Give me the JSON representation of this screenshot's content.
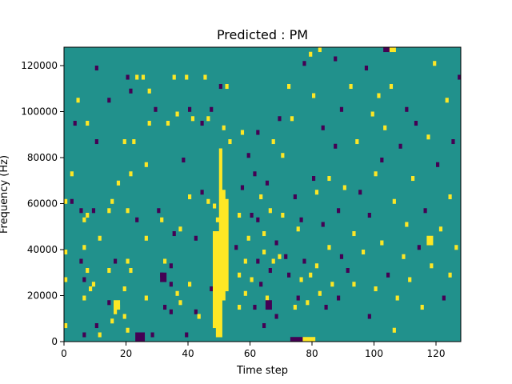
{
  "chart_data": {
    "type": "heatmap",
    "title": "Predicted : PM",
    "xlabel": "Time step",
    "ylabel": "Frequency (Hz)",
    "xlim": [
      0,
      128
    ],
    "ylim": [
      0,
      128000
    ],
    "xticks": [
      0,
      20,
      40,
      60,
      80,
      100,
      120
    ],
    "yticks": [
      0,
      20000,
      40000,
      60000,
      80000,
      100000,
      120000
    ],
    "ytick_labels": [
      "0",
      "20000",
      "40000",
      "60000",
      "80000",
      "100000",
      "120000"
    ],
    "n_time_steps": 128,
    "n_freq_bins": 64,
    "colormap": "viridis",
    "levels": [
      -1,
      0,
      1
    ],
    "colors": {
      "low": "#440154",
      "mid": "#21918c",
      "high": "#fde725"
    },
    "grid": false,
    "legend": "none",
    "cells": [
      {
        "t": 0,
        "f": 60000,
        "v": 1
      },
      {
        "t": 0,
        "f": 38000,
        "v": 1
      },
      {
        "t": 0,
        "f": 6000,
        "v": 1
      },
      {
        "t": 2,
        "f": 72000,
        "v": 1
      },
      {
        "t": 2,
        "f": 60000,
        "v": -1
      },
      {
        "t": 3,
        "f": 94000,
        "v": -1
      },
      {
        "t": 4,
        "f": 104000,
        "v": 1
      },
      {
        "t": 5,
        "f": 34000,
        "v": -1
      },
      {
        "t": 5,
        "f": 56000,
        "v": -1
      },
      {
        "t": 6,
        "f": 52000,
        "v": 1
      },
      {
        "t": 6,
        "f": 40000,
        "v": 1
      },
      {
        "t": 6,
        "f": 18000,
        "v": 1
      },
      {
        "t": 6,
        "f": 26000,
        "v": -1
      },
      {
        "t": 6,
        "f": 2000,
        "v": -1
      },
      {
        "t": 7,
        "f": 54000,
        "v": 1
      },
      {
        "t": 7,
        "f": 94000,
        "v": 1
      },
      {
        "t": 7,
        "f": 30000,
        "v": 1
      },
      {
        "t": 8,
        "f": 22000,
        "v": 1
      },
      {
        "t": 9,
        "f": 24000,
        "v": 1
      },
      {
        "t": 9,
        "f": 56000,
        "v": -1
      },
      {
        "t": 10,
        "f": 118000,
        "v": -1
      },
      {
        "t": 10,
        "f": 86000,
        "v": -1
      },
      {
        "t": 10,
        "f": 6000,
        "v": -1
      },
      {
        "t": 11,
        "f": 44000,
        "v": 1
      },
      {
        "t": 11,
        "f": 2000,
        "v": 1
      },
      {
        "t": 14,
        "f": 104000,
        "v": -1
      },
      {
        "t": 14,
        "f": 56000,
        "v": 1
      },
      {
        "t": 14,
        "f": 30000,
        "v": 1
      },
      {
        "t": 14,
        "f": 16000,
        "v": -1
      },
      {
        "t": 15,
        "f": 60000,
        "v": 1
      },
      {
        "t": 15,
        "f": 8000,
        "v": 1
      },
      {
        "t": 16,
        "f": 34000,
        "v": -1
      },
      {
        "t": 16,
        "f": 12000,
        "v": 1
      },
      {
        "t": 17,
        "f": 68000,
        "v": 1
      },
      {
        "t": 17,
        "f": 14000,
        "v": 1
      },
      {
        "t": 19,
        "f": 22000,
        "v": 1
      },
      {
        "t": 19,
        "f": 10000,
        "v": 1
      },
      {
        "t": 19,
        "f": 86000,
        "v": 1
      },
      {
        "t": 20,
        "f": 114000,
        "v": -1
      },
      {
        "t": 20,
        "f": 56000,
        "v": 1
      },
      {
        "t": 20,
        "f": 34000,
        "v": 1
      },
      {
        "t": 20,
        "f": 4000,
        "v": 1
      },
      {
        "t": 21,
        "f": 108000,
        "v": -1
      },
      {
        "t": 21,
        "f": 72000,
        "v": 1
      },
      {
        "t": 21,
        "f": 30000,
        "v": 1
      },
      {
        "t": 22,
        "f": 86000,
        "v": 1
      },
      {
        "t": 23,
        "f": 114000,
        "v": 1
      },
      {
        "t": 23,
        "f": 52000,
        "v": -1
      },
      {
        "t": 24,
        "f": 2000,
        "v": -1
      },
      {
        "t": 25,
        "f": 114000,
        "v": 1
      },
      {
        "t": 26,
        "f": 76000,
        "v": 1
      },
      {
        "t": 26,
        "f": 44000,
        "v": 1
      },
      {
        "t": 26,
        "f": 18000,
        "v": 1
      },
      {
        "t": 27,
        "f": 108000,
        "v": 1
      },
      {
        "t": 27,
        "f": 94000,
        "v": 1
      },
      {
        "t": 28,
        "f": 2000,
        "v": -1
      },
      {
        "t": 29,
        "f": 100000,
        "v": -1
      },
      {
        "t": 30,
        "f": 56000,
        "v": -1
      },
      {
        "t": 31,
        "f": 28000,
        "v": -1
      },
      {
        "t": 31,
        "f": 52000,
        "v": 1
      },
      {
        "t": 32,
        "f": 34000,
        "v": 1
      },
      {
        "t": 32,
        "f": 14000,
        "v": -1
      },
      {
        "t": 33,
        "f": 94000,
        "v": 1
      },
      {
        "t": 34,
        "f": 32000,
        "v": -1
      },
      {
        "t": 34,
        "f": 24000,
        "v": -1
      },
      {
        "t": 34,
        "f": 12000,
        "v": -1
      },
      {
        "t": 35,
        "f": 114000,
        "v": 1
      },
      {
        "t": 35,
        "f": 46000,
        "v": -1
      },
      {
        "t": 36,
        "f": 98000,
        "v": 1
      },
      {
        "t": 36,
        "f": 20000,
        "v": 1
      },
      {
        "t": 37,
        "f": 48000,
        "v": 1
      },
      {
        "t": 37,
        "f": 16000,
        "v": 1
      },
      {
        "t": 38,
        "f": 78000,
        "v": -1
      },
      {
        "t": 39,
        "f": 114000,
        "v": 1
      },
      {
        "t": 39,
        "f": 2000,
        "v": -1
      },
      {
        "t": 40,
        "f": 100000,
        "v": -1
      },
      {
        "t": 40,
        "f": 62000,
        "v": 1
      },
      {
        "t": 40,
        "f": 24000,
        "v": 1
      },
      {
        "t": 41,
        "f": 96000,
        "v": 1
      },
      {
        "t": 42,
        "f": 44000,
        "v": -1
      },
      {
        "t": 42,
        "f": 12000,
        "v": -1
      },
      {
        "t": 43,
        "f": 10000,
        "v": 1
      },
      {
        "t": 44,
        "f": 64000,
        "v": -1
      },
      {
        "t": 44,
        "f": 94000,
        "v": -1
      },
      {
        "t": 45,
        "f": 114000,
        "v": 1
      },
      {
        "t": 46,
        "f": 96000,
        "v": 1
      },
      {
        "t": 46,
        "f": 60000,
        "v": 1
      },
      {
        "t": 47,
        "f": 100000,
        "v": -1
      },
      {
        "t": 47,
        "f": 22000,
        "v": -1
      },
      {
        "t": 48,
        "f": 58000,
        "v": 1
      },
      {
        "t": 49,
        "f": 26000,
        "v": -1
      },
      {
        "t": 49,
        "f": 52000,
        "v": 1
      },
      {
        "t": 50,
        "f": 110000,
        "v": -1
      },
      {
        "t": 51,
        "f": 92000,
        "v": 1
      },
      {
        "t": 52,
        "f": 110000,
        "v": 1
      },
      {
        "t": 53,
        "f": 86000,
        "v": 1
      },
      {
        "t": 55,
        "f": 40000,
        "v": -1
      },
      {
        "t": 56,
        "f": 54000,
        "v": 1
      },
      {
        "t": 56,
        "f": 28000,
        "v": 1
      },
      {
        "t": 56,
        "f": 14000,
        "v": 1
      },
      {
        "t": 57,
        "f": 90000,
        "v": 1
      },
      {
        "t": 57,
        "f": 66000,
        "v": -1
      },
      {
        "t": 58,
        "f": 34000,
        "v": 1
      },
      {
        "t": 58,
        "f": 20000,
        "v": 1
      },
      {
        "t": 59,
        "f": 80000,
        "v": -1
      },
      {
        "t": 59,
        "f": 44000,
        "v": 1
      },
      {
        "t": 60,
        "f": 54000,
        "v": -1
      },
      {
        "t": 60,
        "f": 26000,
        "v": 1
      },
      {
        "t": 61,
        "f": 72000,
        "v": -1
      },
      {
        "t": 61,
        "f": 14000,
        "v": -1
      },
      {
        "t": 62,
        "f": 90000,
        "v": -1
      },
      {
        "t": 62,
        "f": 52000,
        "v": -1
      },
      {
        "t": 62,
        "f": 34000,
        "v": -1
      },
      {
        "t": 63,
        "f": 24000,
        "v": -1
      },
      {
        "t": 63,
        "f": 62000,
        "v": 1
      },
      {
        "t": 64,
        "f": 38000,
        "v": 1
      },
      {
        "t": 64,
        "f": 6000,
        "v": -1
      },
      {
        "t": 64,
        "f": 46000,
        "v": 1
      },
      {
        "t": 65,
        "f": 68000,
        "v": -1
      },
      {
        "t": 65,
        "f": 18000,
        "v": 1
      },
      {
        "t": 66,
        "f": 56000,
        "v": 1
      },
      {
        "t": 66,
        "f": 30000,
        "v": -1
      },
      {
        "t": 67,
        "f": 86000,
        "v": 1
      },
      {
        "t": 67,
        "f": 34000,
        "v": 1
      },
      {
        "t": 68,
        "f": 42000,
        "v": -1
      },
      {
        "t": 68,
        "f": 10000,
        "v": -1
      },
      {
        "t": 69,
        "f": 96000,
        "v": -1
      },
      {
        "t": 69,
        "f": 36000,
        "v": 1
      },
      {
        "t": 70,
        "f": 80000,
        "v": 1
      },
      {
        "t": 70,
        "f": 54000,
        "v": 1
      },
      {
        "t": 71,
        "f": 36000,
        "v": -1
      },
      {
        "t": 72,
        "f": 110000,
        "v": 1
      },
      {
        "t": 72,
        "f": 28000,
        "v": -1
      },
      {
        "t": 73,
        "f": 96000,
        "v": 1
      },
      {
        "t": 74,
        "f": 62000,
        "v": -1
      },
      {
        "t": 74,
        "f": 14000,
        "v": 1
      },
      {
        "t": 75,
        "f": 48000,
        "v": 1
      },
      {
        "t": 75,
        "f": 18000,
        "v": -1
      },
      {
        "t": 76,
        "f": 52000,
        "v": -1
      },
      {
        "t": 76,
        "f": 26000,
        "v": 1
      },
      {
        "t": 77,
        "f": 120000,
        "v": -1
      },
      {
        "t": 77,
        "f": 34000,
        "v": -1
      },
      {
        "t": 78,
        "f": 16000,
        "v": 1
      },
      {
        "t": 79,
        "f": 124000,
        "v": 1
      },
      {
        "t": 79,
        "f": 28000,
        "v": 1
      },
      {
        "t": 80,
        "f": 106000,
        "v": 1
      },
      {
        "t": 80,
        "f": 70000,
        "v": -1
      },
      {
        "t": 81,
        "f": 64000,
        "v": 1
      },
      {
        "t": 81,
        "f": 32000,
        "v": 1
      },
      {
        "t": 82,
        "f": 126000,
        "v": 1
      },
      {
        "t": 82,
        "f": 20000,
        "v": 1
      },
      {
        "t": 83,
        "f": 92000,
        "v": -1
      },
      {
        "t": 83,
        "f": 50000,
        "v": -1
      },
      {
        "t": 84,
        "f": 14000,
        "v": -1
      },
      {
        "t": 85,
        "f": 70000,
        "v": 1
      },
      {
        "t": 85,
        "f": 40000,
        "v": 1
      },
      {
        "t": 86,
        "f": 24000,
        "v": 1
      },
      {
        "t": 87,
        "f": 122000,
        "v": -1
      },
      {
        "t": 87,
        "f": 84000,
        "v": -1
      },
      {
        "t": 88,
        "f": 56000,
        "v": -1
      },
      {
        "t": 88,
        "f": 18000,
        "v": -1
      },
      {
        "t": 89,
        "f": 100000,
        "v": -1
      },
      {
        "t": 89,
        "f": 36000,
        "v": -1
      },
      {
        "t": 90,
        "f": 66000,
        "v": 1
      },
      {
        "t": 91,
        "f": 30000,
        "v": -1
      },
      {
        "t": 92,
        "f": 110000,
        "v": 1
      },
      {
        "t": 93,
        "f": 46000,
        "v": 1
      },
      {
        "t": 93,
        "f": 24000,
        "v": 1
      },
      {
        "t": 94,
        "f": 86000,
        "v": 1
      },
      {
        "t": 95,
        "f": 64000,
        "v": -1
      },
      {
        "t": 96,
        "f": 38000,
        "v": 1
      },
      {
        "t": 97,
        "f": 118000,
        "v": -1
      },
      {
        "t": 98,
        "f": 54000,
        "v": -1
      },
      {
        "t": 98,
        "f": 10000,
        "v": -1
      },
      {
        "t": 99,
        "f": 98000,
        "v": 1
      },
      {
        "t": 100,
        "f": 72000,
        "v": 1
      },
      {
        "t": 100,
        "f": 22000,
        "v": 1
      },
      {
        "t": 101,
        "f": 106000,
        "v": 1
      },
      {
        "t": 102,
        "f": 42000,
        "v": 1
      },
      {
        "t": 102,
        "f": 78000,
        "v": -1
      },
      {
        "t": 103,
        "f": 92000,
        "v": 1
      },
      {
        "t": 104,
        "f": 28000,
        "v": -1
      },
      {
        "t": 105,
        "f": 110000,
        "v": 1
      },
      {
        "t": 106,
        "f": 60000,
        "v": 1
      },
      {
        "t": 106,
        "f": 4000,
        "v": 1
      },
      {
        "t": 107,
        "f": 18000,
        "v": 1
      },
      {
        "t": 108,
        "f": 84000,
        "v": -1
      },
      {
        "t": 109,
        "f": 36000,
        "v": 1
      },
      {
        "t": 110,
        "f": 100000,
        "v": -1
      },
      {
        "t": 110,
        "f": 50000,
        "v": 1
      },
      {
        "t": 111,
        "f": 26000,
        "v": 1
      },
      {
        "t": 112,
        "f": 70000,
        "v": 1
      },
      {
        "t": 113,
        "f": 94000,
        "v": -1
      },
      {
        "t": 114,
        "f": 40000,
        "v": -1
      },
      {
        "t": 115,
        "f": 14000,
        "v": 1
      },
      {
        "t": 116,
        "f": 56000,
        "v": -1
      },
      {
        "t": 117,
        "f": 88000,
        "v": 1
      },
      {
        "t": 118,
        "f": 32000,
        "v": 1
      },
      {
        "t": 119,
        "f": 120000,
        "v": 1
      },
      {
        "t": 120,
        "f": 76000,
        "v": -1
      },
      {
        "t": 121,
        "f": 48000,
        "v": 1
      },
      {
        "t": 122,
        "f": 18000,
        "v": -1
      },
      {
        "t": 123,
        "f": 104000,
        "v": 1
      },
      {
        "t": 124,
        "f": 62000,
        "v": 1
      },
      {
        "t": 124,
        "f": 28000,
        "v": 1
      },
      {
        "t": 125,
        "f": 86000,
        "v": -1
      },
      {
        "t": 126,
        "f": 40000,
        "v": 1
      },
      {
        "t": 127,
        "f": 114000,
        "v": -1
      }
    ],
    "runs": [
      {
        "t0": 0,
        "t1": 1,
        "f0": 26000,
        "f1": 28000,
        "v": 1
      },
      {
        "t0": 16,
        "t1": 18,
        "f0": 14000,
        "f1": 18000,
        "v": 1
      },
      {
        "t0": 23,
        "t1": 26,
        "f0": 0,
        "f1": 4000,
        "v": -1
      },
      {
        "t0": 31,
        "t1": 33,
        "f0": 26000,
        "f1": 30000,
        "v": -1
      },
      {
        "t0": 48,
        "t1": 50,
        "f0": 6000,
        "f1": 48000,
        "v": 1
      },
      {
        "t0": 49,
        "t1": 51,
        "f0": 2000,
        "f1": 44000,
        "v": 1
      },
      {
        "t0": 50,
        "t1": 52,
        "f0": 18000,
        "f1": 66000,
        "v": 1
      },
      {
        "t0": 51,
        "t1": 53,
        "f0": 22000,
        "f1": 62000,
        "v": 1
      },
      {
        "t0": 50,
        "t1": 51,
        "f0": 66000,
        "f1": 84000,
        "v": 1
      },
      {
        "t0": 65,
        "t1": 67,
        "f0": 14000,
        "f1": 18000,
        "v": -1
      },
      {
        "t0": 73,
        "t1": 77,
        "f0": 0,
        "f1": 2000,
        "v": -1
      },
      {
        "t0": 77,
        "t1": 81,
        "f0": 0,
        "f1": 2000,
        "v": 1
      },
      {
        "t0": 103,
        "t1": 105,
        "f0": 126000,
        "f1": 128000,
        "v": -1
      },
      {
        "t0": 105,
        "t1": 107,
        "f0": 126000,
        "f1": 128000,
        "v": 1
      },
      {
        "t0": 117,
        "t1": 119,
        "f0": 42000,
        "f1": 46000,
        "v": 1
      }
    ]
  }
}
